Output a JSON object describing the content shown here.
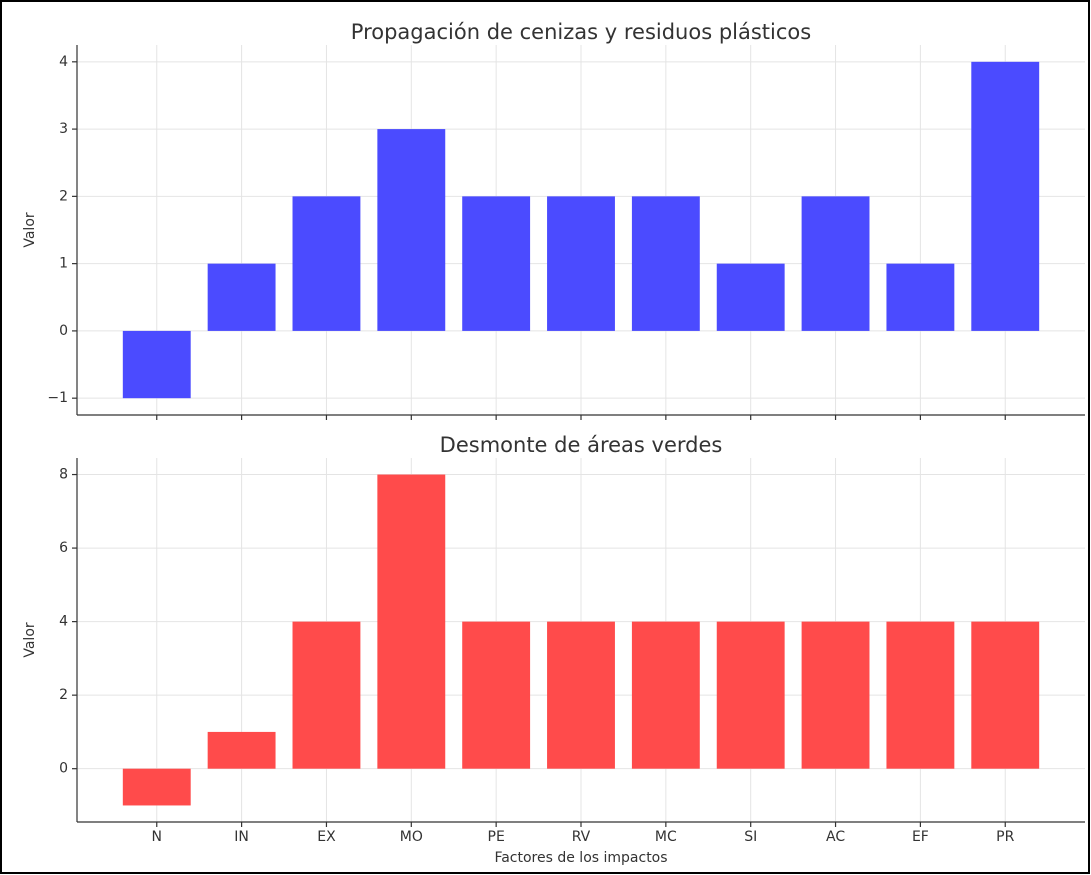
{
  "chart_data": [
    {
      "type": "bar",
      "title": "Propagación de cenizas y residuos plásticos",
      "ylabel": "Valor",
      "categories": [
        "N",
        "IN",
        "EX",
        "MO",
        "PE",
        "RV",
        "MC",
        "SI",
        "AC",
        "EF",
        "PR"
      ],
      "values": [
        -1,
        1,
        2,
        3,
        2,
        2,
        2,
        1,
        2,
        1,
        4
      ],
      "color": "#4b4bff",
      "ylim": [
        -1.25,
        4.25
      ],
      "yticks": [
        {
          "value": -1,
          "label": "−1"
        },
        0,
        1,
        2,
        3,
        4
      ],
      "grid": true
    },
    {
      "type": "bar",
      "title": "Desmonte de áreas verdes",
      "ylabel": "Valor",
      "xlabel": "Factores de los impactos",
      "categories": [
        "N",
        "IN",
        "EX",
        "MO",
        "PE",
        "RV",
        "MC",
        "SI",
        "AC",
        "EF",
        "PR"
      ],
      "values": [
        -1,
        1,
        4,
        8,
        4,
        4,
        4,
        4,
        4,
        4,
        4
      ],
      "color": "#ff4b4b",
      "ylim": [
        -1.45,
        8.45
      ],
      "yticks": [
        0,
        2,
        4,
        6,
        8
      ],
      "grid": true
    }
  ]
}
